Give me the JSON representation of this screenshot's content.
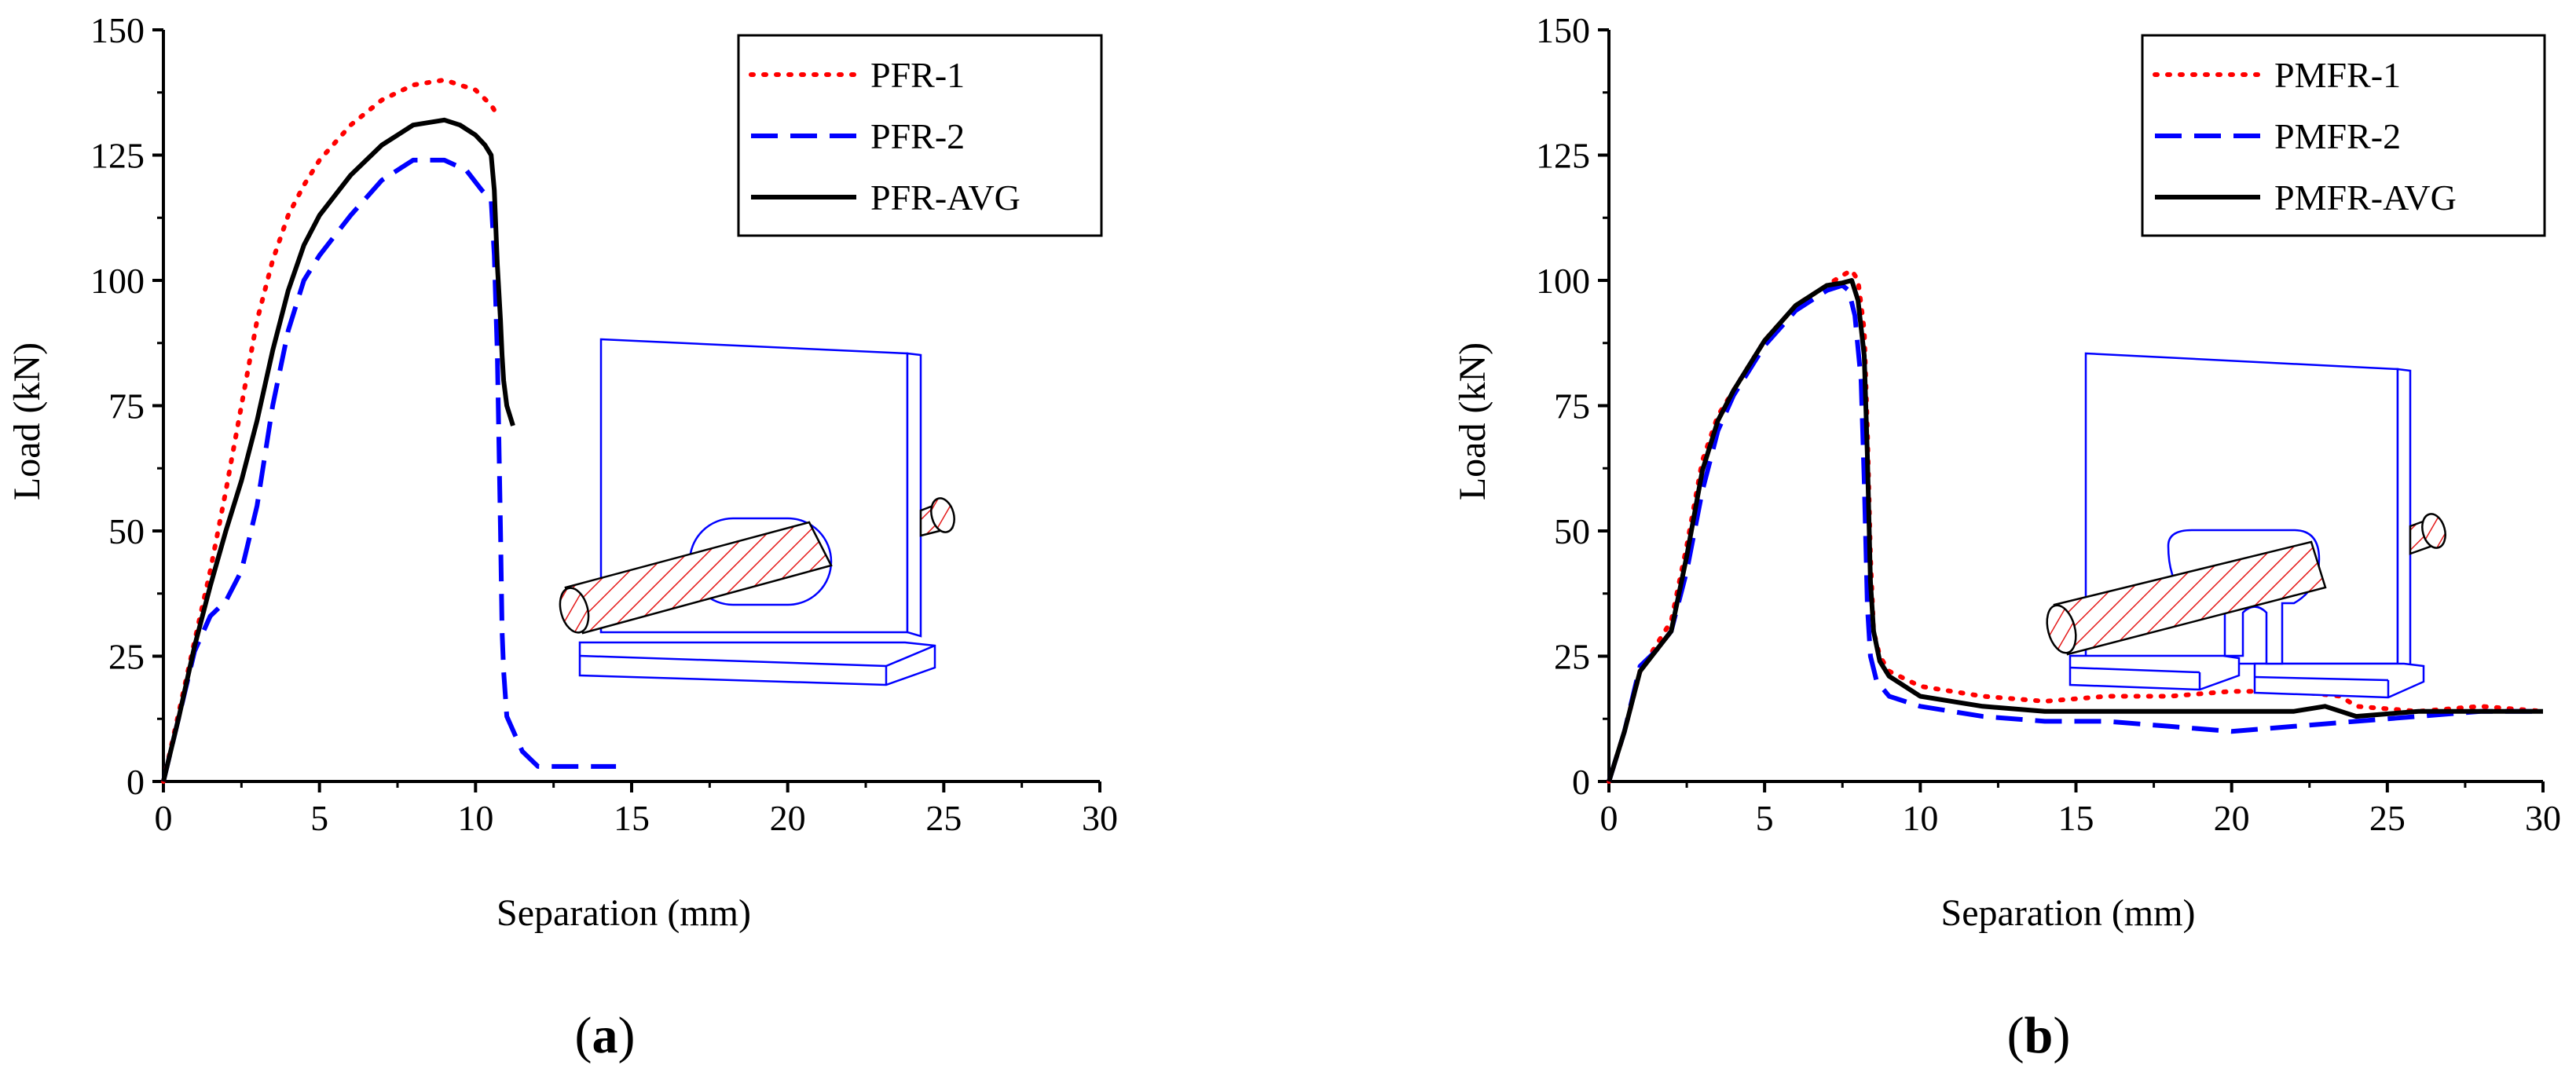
{
  "chart_data": [
    {
      "type": "line",
      "panel_label": "a",
      "xlabel": "Separation (mm)",
      "ylabel": "Load (kN)",
      "xlim": [
        0,
        30
      ],
      "ylim": [
        0,
        150
      ],
      "xticks": [
        0,
        5,
        10,
        15,
        20,
        25,
        30
      ],
      "yticks": [
        0,
        25,
        50,
        75,
        100,
        125,
        150
      ],
      "grid": false,
      "legend_position": "top-right",
      "series": [
        {
          "name": "PFR-1",
          "color": "#ff0000",
          "style": "dotted",
          "x": [
            0,
            0.5,
            1.0,
            1.5,
            2.0,
            2.5,
            3.0,
            3.5,
            4.0,
            4.5,
            5.0,
            6.0,
            7.0,
            8.0,
            9.0,
            10.0,
            10.5,
            10.7
          ],
          "y": [
            0,
            14,
            28,
            42,
            58,
            75,
            92,
            104,
            113,
            119,
            124,
            131,
            136,
            139,
            140,
            138,
            135,
            133
          ]
        },
        {
          "name": "PFR-2",
          "color": "#0000ff",
          "style": "dashed",
          "x": [
            0,
            0.5,
            1.0,
            1.5,
            2.0,
            2.5,
            3.0,
            3.5,
            4.0,
            4.5,
            5.0,
            6.0,
            7.0,
            8.0,
            9.0,
            9.7,
            10.2,
            10.5,
            10.6,
            10.7,
            10.8,
            10.85,
            10.9,
            11.0,
            11.5,
            12.0,
            12.5,
            13.0,
            14.0,
            14.5
          ],
          "y": [
            0,
            13,
            26,
            33,
            36,
            42,
            55,
            75,
            90,
            100,
            105,
            113,
            120,
            124,
            124,
            122,
            118,
            116,
            105,
            85,
            50,
            30,
            22,
            13,
            6,
            3,
            3,
            3,
            3,
            3
          ]
        },
        {
          "name": "PFR-AVG",
          "color": "#000000",
          "style": "solid",
          "x": [
            0,
            0.5,
            1.0,
            1.5,
            2.0,
            2.5,
            3.0,
            3.5,
            4.0,
            4.5,
            5.0,
            6.0,
            7.0,
            8.0,
            9.0,
            9.5,
            10.0,
            10.3,
            10.5,
            10.6,
            10.7,
            10.8,
            10.85,
            10.9,
            11.0,
            11.2
          ],
          "y": [
            0,
            13,
            27,
            39,
            50,
            60,
            72,
            86,
            98,
            107,
            113,
            121,
            127,
            131,
            132,
            131,
            129,
            127,
            125,
            118,
            103,
            92,
            85,
            80,
            75,
            71
          ]
        }
      ]
    },
    {
      "type": "line",
      "panel_label": "b",
      "xlabel": "Separation (mm)",
      "ylabel": "Load (kN)",
      "xlim": [
        0,
        30
      ],
      "ylim": [
        0,
        150
      ],
      "xticks": [
        0,
        5,
        10,
        15,
        20,
        25,
        30
      ],
      "yticks": [
        0,
        25,
        50,
        75,
        100,
        125,
        150
      ],
      "grid": false,
      "legend_position": "top-right",
      "series": [
        {
          "name": "PMFR-1",
          "color": "#ff0000",
          "style": "dotted",
          "x": [
            0,
            0.5,
            1.0,
            1.5,
            2.0,
            2.5,
            3.0,
            3.5,
            4.0,
            5.0,
            6.0,
            7.0,
            7.5,
            7.8,
            8.0,
            8.2,
            8.3,
            8.4,
            8.5,
            8.7,
            9.0,
            10.0,
            12.0,
            14.0,
            16.0,
            18.0,
            20.0,
            22.0,
            23.5,
            24.0,
            26.0,
            28.0,
            30.0
          ],
          "y": [
            0,
            10,
            22,
            27,
            32,
            47,
            64,
            73,
            78,
            88,
            95,
            99,
            101,
            102,
            100,
            90,
            70,
            45,
            30,
            25,
            22,
            19,
            17,
            16,
            17,
            17,
            18,
            18,
            17,
            15,
            14,
            15,
            14
          ]
        },
        {
          "name": "PMFR-2",
          "color": "#0000ff",
          "style": "dashed",
          "x": [
            0,
            0.5,
            1.0,
            1.5,
            2.0,
            2.5,
            3.0,
            3.5,
            4.0,
            5.0,
            6.0,
            7.0,
            7.5,
            7.7,
            7.9,
            8.1,
            8.2,
            8.3,
            8.4,
            8.6,
            9.0,
            10.0,
            12.0,
            14.0,
            16.0,
            18.0,
            20.0,
            22.0,
            24.0,
            26.0,
            28.0,
            30.0
          ],
          "y": [
            0,
            10,
            23,
            26,
            30,
            42,
            58,
            70,
            77,
            87,
            94,
            98,
            99,
            98,
            93,
            80,
            60,
            35,
            25,
            20,
            17,
            15,
            13,
            12,
            12,
            11,
            10,
            11,
            12,
            13,
            14,
            14
          ]
        },
        {
          "name": "PMFR-AVG",
          "color": "#000000",
          "style": "solid",
          "x": [
            0,
            0.5,
            1.0,
            1.5,
            2.0,
            2.5,
            3.0,
            3.5,
            4.0,
            5.0,
            6.0,
            7.0,
            7.5,
            7.8,
            8.0,
            8.2,
            8.3,
            8.4,
            8.5,
            8.7,
            9.0,
            10.0,
            11.0,
            12.0,
            14.0,
            16.0,
            18.0,
            20.0,
            22.0,
            23.0,
            23.5,
            24.0,
            26.0,
            28.0,
            30.0
          ],
          "y": [
            0,
            10,
            22,
            26,
            30,
            45,
            62,
            72,
            78,
            88,
            95,
            99,
            99.5,
            100,
            96,
            85,
            65,
            40,
            30,
            24,
            21,
            17,
            16,
            15,
            14,
            14,
            14,
            14,
            14,
            15,
            14,
            13,
            14,
            14,
            14
          ]
        }
      ]
    }
  ]
}
